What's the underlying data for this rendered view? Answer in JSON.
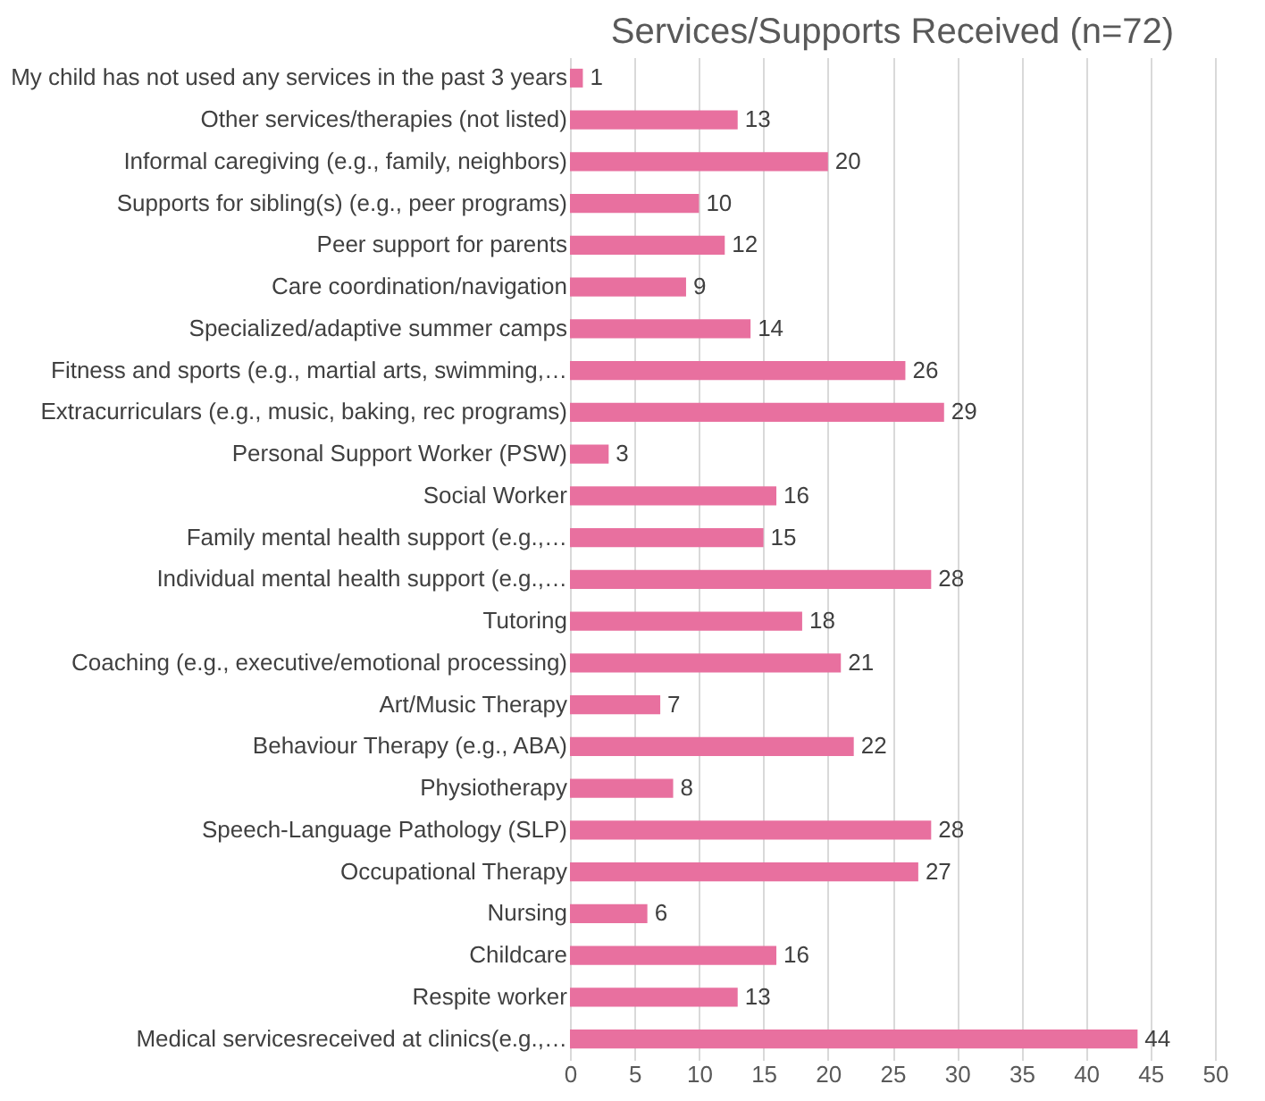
{
  "chart_data": {
    "type": "bar",
    "orientation": "horizontal",
    "title": "Services/Supports Received (n=72)",
    "categories": [
      "My child has not used any services in the past 3 years",
      "Other services/therapies (not listed)",
      "Informal caregiving (e.g., family, neighbors)",
      "Supports for sibling(s) (e.g., peer programs)",
      "Peer support for parents",
      "Care coordination/navigation",
      "Specialized/adaptive summer camps",
      "Fitness and sports (e.g., martial arts, swimming,…",
      "Extracurriculars (e.g., music, baking, rec programs)",
      "Personal Support Worker (PSW)",
      "Social Worker",
      "Family mental health support (e.g.,…",
      "Individual mental health support (e.g.,…",
      "Tutoring",
      "Coaching (e.g., executive/emotional processing)",
      "Art/Music Therapy",
      "Behaviour Therapy (e.g., ABA)",
      "Physiotherapy",
      "Speech-Language Pathology (SLP)",
      "Occupational Therapy",
      "Nursing",
      "Childcare",
      "Respite worker",
      "Medical servicesreceived at clinics(e.g.,…"
    ],
    "values": [
      1,
      13,
      20,
      10,
      12,
      9,
      14,
      26,
      29,
      3,
      16,
      15,
      28,
      18,
      21,
      7,
      22,
      8,
      28,
      27,
      6,
      16,
      13,
      44
    ],
    "color": "#e8709f",
    "xlim": [
      0,
      50
    ],
    "xticks": [
      0,
      5,
      10,
      15,
      20,
      25,
      30,
      35,
      40,
      45,
      50
    ],
    "grid": "x",
    "data_labels": true
  }
}
